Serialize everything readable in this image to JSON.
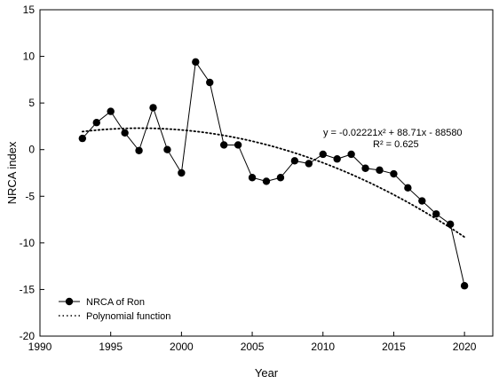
{
  "chart_data": {
    "type": "line",
    "xlabel": "Year",
    "ylabel": "NRCA index",
    "xlim": [
      1990,
      2022
    ],
    "ylim": [
      -20,
      15
    ],
    "xticks": [
      1990,
      1995,
      2000,
      2005,
      2010,
      2015,
      2020
    ],
    "yticks": [
      -20,
      -15,
      -10,
      -5,
      0,
      5,
      10,
      15
    ],
    "grid": false,
    "legend_position": "bottom-left",
    "series": [
      {
        "name": "NRCA of Ron",
        "style": "line-markers",
        "x": [
          1993,
          1994,
          1995,
          1996,
          1997,
          1998,
          1999,
          2000,
          2001,
          2002,
          2003,
          2004,
          2005,
          2006,
          2007,
          2008,
          2009,
          2010,
          2011,
          2012,
          2013,
          2014,
          2015,
          2016,
          2017,
          2018,
          2019,
          2020
        ],
        "y": [
          1.2,
          2.9,
          4.1,
          1.8,
          -0.1,
          4.5,
          0.0,
          -2.5,
          9.4,
          7.2,
          0.5,
          0.5,
          -3.0,
          -3.4,
          -3.0,
          -1.2,
          -1.5,
          -0.5,
          -1.0,
          -0.5,
          -2.0,
          -2.2,
          -2.6,
          -4.1,
          -5.5,
          -6.9,
          -8.0,
          -14.6
        ]
      },
      {
        "name": "Polynomial function",
        "style": "dotted",
        "equation": "y = -0.02221x² + 88.71x - 88580",
        "x_range": [
          1993,
          2020
        ]
      }
    ],
    "annotations": {
      "equation": "y = -0.02221x² + 88.71x - 88580",
      "r_squared": "R² = 0.625"
    }
  }
}
